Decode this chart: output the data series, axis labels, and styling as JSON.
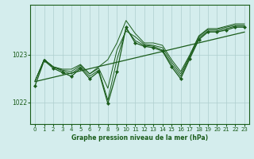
{
  "title": "Graphe pression niveau de la mer (hPa)",
  "background_color": "#d4eded",
  "line_color": "#1a5c1a",
  "grid_color": "#aecece",
  "xlim": [
    -0.5,
    23.5
  ],
  "ylim": [
    1021.55,
    1024.05
  ],
  "yticks": [
    1022,
    1023
  ],
  "xticks": [
    0,
    1,
    2,
    3,
    4,
    5,
    6,
    7,
    8,
    9,
    10,
    11,
    12,
    13,
    14,
    15,
    16,
    17,
    18,
    19,
    20,
    21,
    22,
    23
  ],
  "series": [
    [
      1022.45,
      1022.9,
      1022.75,
      1022.7,
      1022.7,
      1022.8,
      1022.6,
      1022.75,
      1022.9,
      1023.25,
      1023.72,
      1023.45,
      1023.25,
      1023.25,
      1023.2,
      1022.9,
      1022.65,
      1023.0,
      1023.4,
      1023.55,
      1023.55,
      1023.6,
      1023.65,
      1023.65
    ],
    [
      1022.45,
      1022.9,
      1022.75,
      1022.68,
      1022.65,
      1022.78,
      1022.6,
      1022.72,
      1022.3,
      1023.1,
      1023.5,
      1023.38,
      1023.22,
      1023.2,
      1023.15,
      1022.85,
      1022.6,
      1022.98,
      1023.38,
      1023.53,
      1023.53,
      1023.58,
      1023.62,
      1023.62
    ],
    [
      1022.45,
      1022.9,
      1022.75,
      1022.66,
      1022.6,
      1022.75,
      1022.55,
      1022.68,
      1022.05,
      1022.9,
      1023.55,
      1023.3,
      1023.2,
      1023.18,
      1023.1,
      1022.8,
      1022.55,
      1022.95,
      1023.35,
      1023.5,
      1023.5,
      1023.55,
      1023.6,
      1023.6
    ],
    [
      1022.35,
      1022.88,
      1022.72,
      1022.63,
      1022.55,
      1022.72,
      1022.5,
      1022.65,
      1021.98,
      1022.65,
      1023.58,
      1023.25,
      1023.18,
      1023.15,
      1023.08,
      1022.75,
      1022.5,
      1022.92,
      1023.32,
      1023.48,
      1023.48,
      1023.52,
      1023.58,
      1023.58
    ]
  ],
  "main_x": [
    0,
    1,
    2,
    3,
    4,
    5,
    6,
    7,
    8,
    9,
    10,
    11,
    12,
    13,
    14,
    15,
    16,
    17,
    18,
    19,
    20,
    21,
    22,
    23
  ],
  "main_y": [
    1022.35,
    1022.88,
    1022.72,
    1022.63,
    1022.55,
    1022.72,
    1022.5,
    1022.65,
    1021.98,
    1022.65,
    1023.58,
    1023.25,
    1023.18,
    1023.15,
    1023.08,
    1022.75,
    1022.5,
    1022.92,
    1023.32,
    1023.48,
    1023.48,
    1023.52,
    1023.58,
    1023.58
  ]
}
